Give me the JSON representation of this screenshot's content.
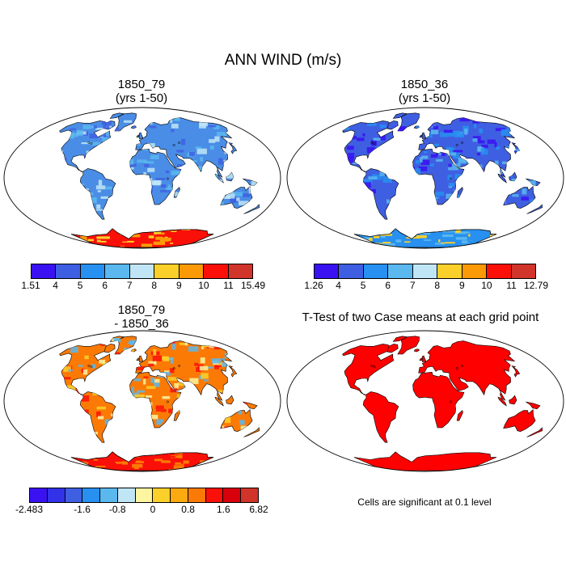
{
  "title": "ANN WIND (m/s)",
  "panels": [
    {
      "title_line1": "1850_79",
      "title_line2": "(yrs 1-50)"
    },
    {
      "title_line1": "1850_36",
      "title_line2": "(yrs 1-50)"
    },
    {
      "title_line1": "1850_79",
      "title_line2": "- 1850_36"
    },
    {
      "title_line1": "T-Test of two Case means at each grid point",
      "title_line2": ""
    }
  ],
  "colorbars": [
    {
      "colors": [
        "#3a12f2",
        "#3f5fe2",
        "#2790f0",
        "#5ab8ef",
        "#c0e6f6",
        "#fcd02b",
        "#fb9a06",
        "#fa1008",
        "#d0342a"
      ],
      "labels": [
        {
          "text": "1.51",
          "idx": 0
        },
        {
          "text": "4",
          "idx": 1
        },
        {
          "text": "5",
          "idx": 2
        },
        {
          "text": "6",
          "idx": 3
        },
        {
          "text": "7",
          "idx": 4
        },
        {
          "text": "8",
          "idx": 5
        },
        {
          "text": "9",
          "idx": 6
        },
        {
          "text": "10",
          "idx": 7
        },
        {
          "text": "11",
          "idx": 8
        },
        {
          "text": "15.49",
          "idx": 9
        }
      ]
    },
    {
      "colors": [
        "#3a12f2",
        "#3f5fe2",
        "#2790f0",
        "#5ab8ef",
        "#c0e6f6",
        "#fcd02b",
        "#fb9a06",
        "#fa1008",
        "#d0342a"
      ],
      "labels": [
        {
          "text": "1.26",
          "idx": 0
        },
        {
          "text": "4",
          "idx": 1
        },
        {
          "text": "5",
          "idx": 2
        },
        {
          "text": "6",
          "idx": 3
        },
        {
          "text": "7",
          "idx": 4
        },
        {
          "text": "8",
          "idx": 5
        },
        {
          "text": "9",
          "idx": 6
        },
        {
          "text": "10",
          "idx": 7
        },
        {
          "text": "11",
          "idx": 8
        },
        {
          "text": "12.79",
          "idx": 9
        }
      ]
    },
    {
      "colors": [
        "#3a12f2",
        "#3232e8",
        "#3f5fe2",
        "#2790f0",
        "#5ab8ef",
        "#c0e6f6",
        "#fdf5a0",
        "#fcd02b",
        "#fbaa10",
        "#fb7a06",
        "#fa1008",
        "#d8000c",
        "#d0342a"
      ],
      "labels": [
        {
          "text": "-2.483",
          "idx": 0
        },
        {
          "text": "-1.6",
          "idx": 3
        },
        {
          "text": "-0.8",
          "idx": 5
        },
        {
          "text": "0",
          "idx": 7
        },
        {
          "text": "0.8",
          "idx": 9
        },
        {
          "text": "1.6",
          "idx": 11
        },
        {
          "text": "6.82",
          "idx": 13
        }
      ]
    }
  ],
  "map_fills": {
    "p1_land": "#4a8de6",
    "p1_highlights": [
      "#5ab8ef",
      "#c0e6f6",
      "#3f5fe2"
    ],
    "p1_antarctica": [
      "#fa1008",
      "#fb9a06",
      "#fcd02b"
    ],
    "p2_land": "#3f5fe2",
    "p2_highlights": [
      "#3a12f2",
      "#2790f0",
      "#5ab8ef"
    ],
    "p2_antarctica": [
      "#2790f0",
      "#5ab8ef",
      "#fcd02b"
    ],
    "p3_land": "#fb7a06",
    "p3_highlights": [
      "#fa1008",
      "#fcd02b",
      "#fdf5a0",
      "#5ab8ef"
    ],
    "p3_antarctica": [
      "#fa1008",
      "#fb7a06"
    ],
    "p4_land": "#ff0000",
    "ocean": "#ffffff"
  },
  "significance_note": "Cells are significant at 0.1 level"
}
